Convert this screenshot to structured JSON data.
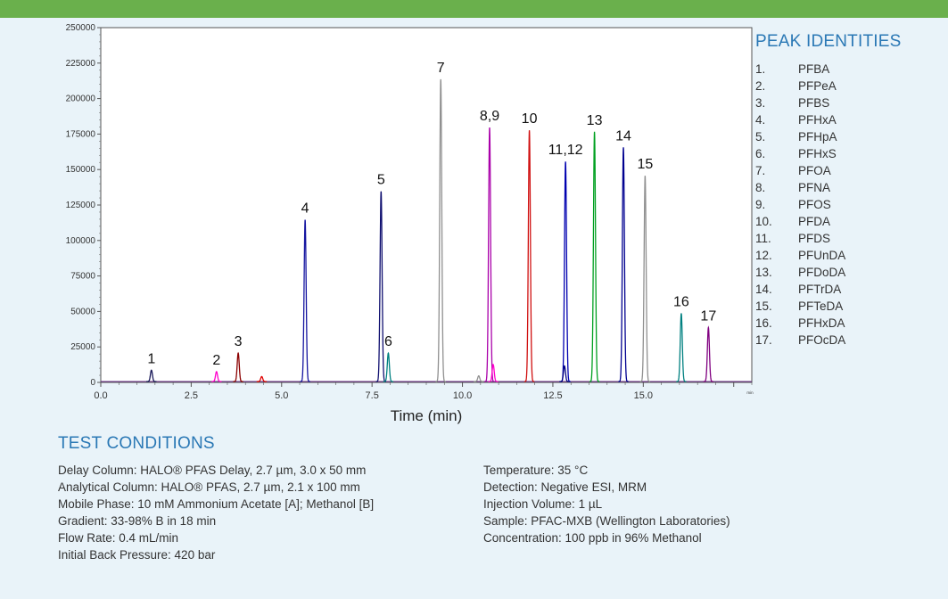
{
  "chart_data": {
    "type": "line",
    "xlabel": "Time (min)",
    "ylabel": "",
    "xlim": [
      0,
      18
    ],
    "ylim": [
      0,
      250000
    ],
    "x_ticks": [
      0.0,
      2.5,
      5.0,
      7.5,
      10.0,
      12.5,
      15.0
    ],
    "x_tick_labels": [
      "0.0",
      "2.5",
      "5.0",
      "7.5",
      "10.0",
      "12.5",
      "15.0"
    ],
    "x_end_label": "min",
    "y_ticks": [
      0,
      25000,
      50000,
      75000,
      100000,
      125000,
      150000,
      175000,
      200000,
      225000,
      250000
    ],
    "y_tick_labels": [
      "0",
      "25000",
      "50000",
      "75000",
      "100000",
      "125000",
      "150000",
      "175000",
      "200000",
      "225000",
      "250000"
    ],
    "grid": false,
    "peaks": [
      {
        "label": "1",
        "rt": 1.4,
        "height": 8000,
        "color": "#1a1a5a"
      },
      {
        "label": "2",
        "rt": 3.2,
        "height": 7000,
        "color": "#ff00cc"
      },
      {
        "label": "3",
        "rt": 3.8,
        "height": 20000,
        "color": "#8b0000"
      },
      {
        "label": "",
        "rt": 4.45,
        "height": 3500,
        "color": "#e00000"
      },
      {
        "label": "4",
        "rt": 5.65,
        "height": 114000,
        "color": "#1515a0"
      },
      {
        "label": "5",
        "rt": 7.75,
        "height": 134000,
        "color": "#101070"
      },
      {
        "label": "6",
        "rt": 7.95,
        "height": 20000,
        "color": "#008080"
      },
      {
        "label": "7",
        "rt": 9.4,
        "height": 213000,
        "color": "#909090"
      },
      {
        "label": "",
        "rt": 10.45,
        "height": 4000,
        "color": "#909090"
      },
      {
        "label": "8,9",
        "rt": 10.75,
        "height": 179000,
        "color": "#aa00aa"
      },
      {
        "label": "",
        "rt": 10.85,
        "height": 12000,
        "color": "#ff00cc"
      },
      {
        "label": "10",
        "rt": 11.85,
        "height": 177000,
        "color": "#d01010"
      },
      {
        "label": "11,12",
        "rt": 12.85,
        "height": 155000,
        "color": "#0000b0"
      },
      {
        "label": "",
        "rt": 12.82,
        "height": 11000,
        "color": "#000080"
      },
      {
        "label": "13",
        "rt": 13.65,
        "height": 176000,
        "color": "#00a020"
      },
      {
        "label": "14",
        "rt": 14.45,
        "height": 165000,
        "color": "#000090"
      },
      {
        "label": "15",
        "rt": 15.05,
        "height": 145000,
        "color": "#909090"
      },
      {
        "label": "16",
        "rt": 16.05,
        "height": 48000,
        "color": "#008080"
      },
      {
        "label": "17",
        "rt": 16.8,
        "height": 38000,
        "color": "#800080"
      }
    ]
  },
  "peak_identities": {
    "title": "PEAK IDENTITIES",
    "items": [
      {
        "num": "1.",
        "name": "PFBA"
      },
      {
        "num": "2.",
        "name": "PFPeA"
      },
      {
        "num": "3.",
        "name": "PFBS"
      },
      {
        "num": "4.",
        "name": "PFHxA"
      },
      {
        "num": "5.",
        "name": "PFHpA"
      },
      {
        "num": "6.",
        "name": "PFHxS"
      },
      {
        "num": "7.",
        "name": "PFOA"
      },
      {
        "num": "8.",
        "name": "PFNA"
      },
      {
        "num": "9.",
        "name": "PFOS"
      },
      {
        "num": "10.",
        "name": "PFDA"
      },
      {
        "num": "11.",
        "name": "PFDS"
      },
      {
        "num": "12.",
        "name": "PFUnDA"
      },
      {
        "num": "13.",
        "name": "PFDoDA"
      },
      {
        "num": "14.",
        "name": "PFTrDA"
      },
      {
        "num": "15.",
        "name": "PFTeDA"
      },
      {
        "num": "16.",
        "name": "PFHxDA"
      },
      {
        "num": "17.",
        "name": "PFOcDA"
      }
    ]
  },
  "test_conditions": {
    "title": "TEST CONDITIONS",
    "left": [
      "Delay Column: HALO® PFAS Delay, 2.7 µm, 3.0 x 50 mm",
      "Analytical Column: HALO® PFAS, 2.7 µm, 2.1 x 100 mm",
      "Mobile Phase: 10 mM Ammonium Acetate [A]; Methanol [B]",
      "Gradient: 33-98% B in 18 min",
      "Flow Rate: 0.4 mL/min",
      "Initial Back Pressure:  420 bar"
    ],
    "right": [
      "Temperature: 35 °C",
      "Detection: Negative ESI, MRM",
      "Injection Volume: 1 µL",
      "Sample: PFAC-MXB (Wellington Laboratories)",
      "Concentration: 100 ppb in 96% Methanol"
    ]
  }
}
